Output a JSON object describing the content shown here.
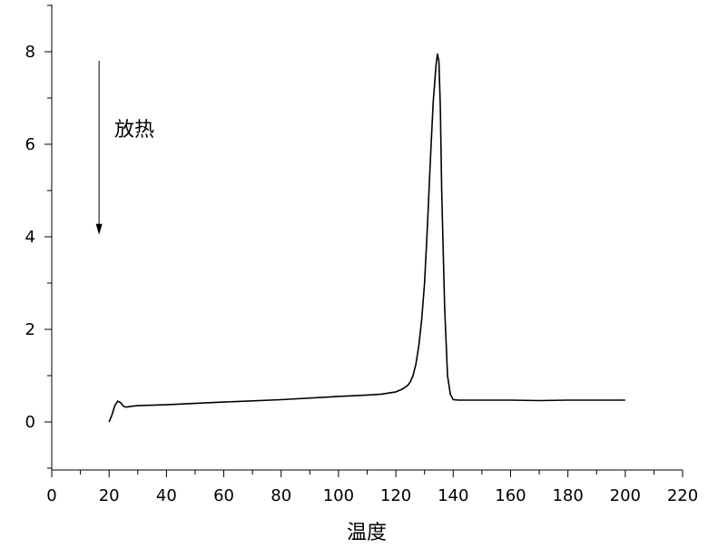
{
  "chart_data": {
    "type": "line",
    "xlabel": "温度",
    "ylabel": "",
    "xlim": [
      0,
      220
    ],
    "ylim": [
      -1,
      9
    ],
    "xticks": [
      0,
      20,
      40,
      60,
      80,
      100,
      120,
      140,
      160,
      180,
      200,
      220
    ],
    "yticks": [
      0,
      2,
      4,
      6,
      8
    ],
    "grid": false,
    "annotation": {
      "text": "放热",
      "arrow": "down",
      "arrow_x": 16.5,
      "arrow_y_from": 8.0,
      "arrow_y_to": 4.2
    },
    "series": [
      {
        "color": "#000000",
        "x": [
          20,
          21,
          22,
          23,
          24,
          25,
          26,
          28,
          30,
          40,
          60,
          80,
          100,
          110,
          115,
          120,
          122,
          124,
          125,
          126,
          127,
          128,
          129,
          130,
          131,
          132,
          133,
          134,
          134.5,
          135,
          135.5,
          136,
          137,
          138,
          139,
          140,
          142,
          150,
          160,
          170,
          180,
          190,
          200
        ],
        "y": [
          0.0,
          0.15,
          0.35,
          0.45,
          0.42,
          0.34,
          0.32,
          0.34,
          0.35,
          0.37,
          0.43,
          0.48,
          0.55,
          0.58,
          0.6,
          0.65,
          0.7,
          0.78,
          0.86,
          1.0,
          1.25,
          1.65,
          2.2,
          3.0,
          4.2,
          5.6,
          6.9,
          7.7,
          7.95,
          7.8,
          6.8,
          5.0,
          2.5,
          1.0,
          0.6,
          0.48,
          0.47,
          0.47,
          0.47,
          0.46,
          0.47,
          0.47,
          0.47
        ]
      }
    ]
  }
}
